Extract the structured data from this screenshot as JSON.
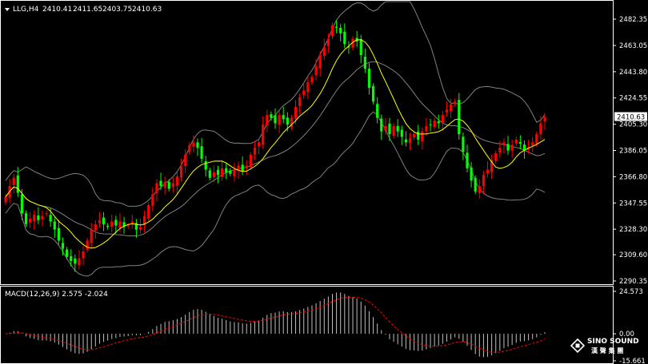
{
  "chart_data": {
    "type": "candlestick",
    "symbol": "LLG,H4",
    "ohlc_header": {
      "open": "2410.41",
      "high": "2411.65",
      "low": "2403.75",
      "close": "2410.63"
    },
    "current_price": "2410.63",
    "price_ticks": [
      "2482.35",
      "2463.05",
      "2443.80",
      "2424.55",
      "2405.30",
      "2386.05",
      "2366.80",
      "2347.55",
      "2328.30",
      "2309.60",
      "2290.35"
    ],
    "ylim": [
      2290.35,
      2482.35
    ],
    "overlays": [
      "moving-average",
      "bollinger-bands"
    ],
    "closes": [
      2352,
      2360,
      2366,
      2355,
      2340,
      2332,
      2336,
      2339,
      2335,
      2338,
      2340,
      2334,
      2328,
      2320,
      2314,
      2308,
      2305,
      2303,
      2307,
      2312,
      2320,
      2328,
      2332,
      2335,
      2332,
      2330,
      2334,
      2331,
      2334,
      2330,
      2331,
      2334,
      2328,
      2330,
      2338,
      2346,
      2354,
      2362,
      2360,
      2363,
      2358,
      2362,
      2367,
      2374,
      2383,
      2390,
      2392,
      2388,
      2380,
      2372,
      2366,
      2370,
      2368,
      2373,
      2370,
      2369,
      2372,
      2375,
      2371,
      2375,
      2383,
      2388,
      2392,
      2405,
      2412,
      2410,
      2406,
      2412,
      2409,
      2405,
      2410,
      2418,
      2425,
      2430,
      2436,
      2440,
      2448,
      2456,
      2462,
      2468,
      2478,
      2476,
      2472,
      2464,
      2462,
      2468,
      2466,
      2456,
      2446,
      2432,
      2422,
      2410,
      2400,
      2404,
      2398,
      2404,
      2400,
      2396,
      2392,
      2395,
      2398,
      2394,
      2400,
      2404,
      2405,
      2408,
      2406,
      2412,
      2416,
      2420,
      2422,
      2398,
      2385,
      2373,
      2364,
      2356,
      2360,
      2368,
      2372,
      2379,
      2384,
      2388,
      2392,
      2386,
      2390,
      2394,
      2391,
      2386,
      2388,
      2392,
      2398,
      2406,
      2410.63
    ],
    "macd": {
      "label": "MACD(12,26,9) 2.575 -2.024",
      "params": [
        12,
        26,
        9
      ],
      "value": 2.575,
      "signal": -2.024,
      "ticks": [
        "24.573",
        "0.00",
        "-15.661"
      ],
      "ylim": [
        -15.661,
        24.573
      ]
    }
  },
  "watermark": {
    "brand": "SINO SOUND",
    "sub": "漢 聲 集 團"
  },
  "colors": {
    "background": "#000000",
    "bull": "#ff0000",
    "bear": "#00ff00",
    "ma": "#ffff00",
    "bands": "#808080",
    "axis": "#ffffff",
    "macd_hist": "#c0c0c0",
    "macd_signal": "#ff0000"
  }
}
